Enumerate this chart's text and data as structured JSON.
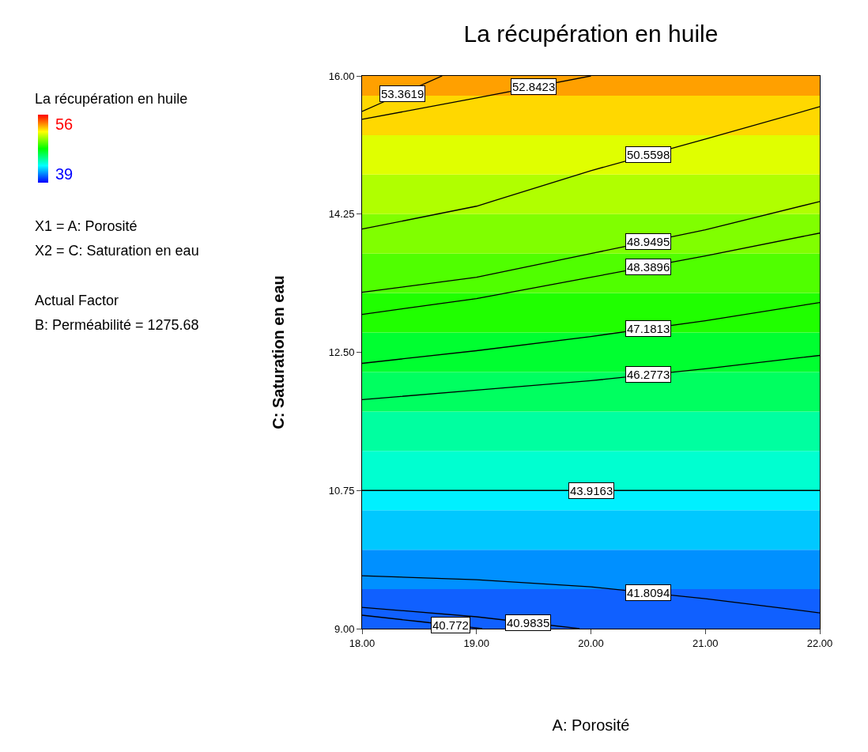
{
  "chart_data": {
    "type": "line",
    "title": "La récupération en huile",
    "xlabel": "A: Porosité",
    "ylabel": "C: Saturation en eau",
    "annotations": [
      "La récupération en huile",
      "56",
      "39",
      "X1 = A: Porosité",
      "X2 = C: Saturation en eau",
      "Actual Factor",
      "B: Perméabilité = 1275.68"
    ],
    "xlim": [
      18,
      22
    ],
    "xticks": [
      {
        "value": 18,
        "label": "18.00"
      },
      {
        "value": 19,
        "label": "19.00"
      },
      {
        "value": 20,
        "label": "20.00"
      },
      {
        "value": 21,
        "label": "21.00"
      },
      {
        "value": 22,
        "label": "22.00"
      }
    ],
    "ylim": [
      9,
      16
    ],
    "yticks": [
      {
        "value": 9,
        "label": "9.00"
      },
      {
        "value": 10.75,
        "label": "10.75"
      },
      {
        "value": 12.5,
        "label": "12.50"
      },
      {
        "value": 14.25,
        "label": "14.25"
      },
      {
        "value": 16,
        "label": "16.00"
      }
    ],
    "grid": false,
    "legend": false,
    "marker": "none",
    "line_style": "solid",
    "bands": [
      {
        "axis": "y",
        "from": 9,
        "to": 9.5,
        "color": "#1060ff"
      },
      {
        "axis": "y",
        "from": 9.5,
        "to": 10,
        "color": "#0090ff"
      },
      {
        "axis": "y",
        "from": 10,
        "to": 10.5,
        "color": "#00c8ff"
      },
      {
        "axis": "y",
        "from": 10.5,
        "to": 10.75,
        "color": "#00f0ff"
      },
      {
        "axis": "y",
        "from": 10.75,
        "to": 11.25,
        "color": "#00ffd0"
      },
      {
        "axis": "y",
        "from": 11.25,
        "to": 11.75,
        "color": "#00ffa0"
      },
      {
        "axis": "y",
        "from": 11.75,
        "to": 12.25,
        "color": "#00ff60"
      },
      {
        "axis": "y",
        "from": 12.25,
        "to": 12.75,
        "color": "#00ff30"
      },
      {
        "axis": "y",
        "from": 12.75,
        "to": 13.25,
        "color": "#20ff00"
      },
      {
        "axis": "y",
        "from": 13.25,
        "to": 13.75,
        "color": "#50ff00"
      },
      {
        "axis": "y",
        "from": 13.75,
        "to": 14.25,
        "color": "#80ff00"
      },
      {
        "axis": "y",
        "from": 14.25,
        "to": 14.75,
        "color": "#b0ff00"
      },
      {
        "axis": "y",
        "from": 14.75,
        "to": 15.25,
        "color": "#e0ff00"
      },
      {
        "axis": "y",
        "from": 15.25,
        "to": 15.75,
        "color": "#ffd800"
      },
      {
        "axis": "y",
        "from": 15.75,
        "to": 16,
        "color": "#ffa000"
      }
    ],
    "series": [
      {
        "name": "53.3619",
        "color": "#000000",
        "x": [
          18,
          18.7
        ],
        "values": [
          15.55,
          16
        ]
      },
      {
        "name": "52.8423",
        "color": "#000000",
        "x": [
          18,
          19,
          20
        ],
        "values": [
          15.45,
          15.72,
          16
        ]
      },
      {
        "name": "50.5598",
        "color": "#000000",
        "x": [
          18,
          19,
          20,
          21,
          22
        ],
        "values": [
          14.06,
          14.35,
          14.8,
          15.2,
          15.61
        ]
      },
      {
        "name": "48.9495",
        "color": "#000000",
        "x": [
          18,
          19,
          20,
          21,
          22
        ],
        "values": [
          13.26,
          13.45,
          13.75,
          14.05,
          14.41
        ]
      },
      {
        "name": "48.3896",
        "color": "#000000",
        "x": [
          18,
          19,
          20,
          21,
          22
        ],
        "values": [
          12.98,
          13.18,
          13.45,
          13.72,
          14.01
        ]
      },
      {
        "name": "47.1813",
        "color": "#000000",
        "x": [
          18,
          19,
          20,
          21,
          22
        ],
        "values": [
          12.36,
          12.52,
          12.7,
          12.9,
          13.13
        ]
      },
      {
        "name": "46.2773",
        "color": "#000000",
        "x": [
          18,
          19,
          20,
          21,
          22
        ],
        "values": [
          11.9,
          12.02,
          12.14,
          12.29,
          12.46
        ]
      },
      {
        "name": "43.9163",
        "color": "#000000",
        "x": [
          18,
          19.5,
          20.5,
          22
        ],
        "values": [
          10.75,
          10.75,
          10.75,
          10.75
        ]
      },
      {
        "name": "41.8094",
        "color": "#000000",
        "x": [
          18,
          19,
          20,
          21,
          22
        ],
        "values": [
          9.67,
          9.62,
          9.53,
          9.38,
          9.2
        ]
      },
      {
        "name": "40.9835",
        "color": "#000000",
        "x": [
          18,
          19,
          19.9
        ],
        "values": [
          9.27,
          9.15,
          9.0
        ]
      },
      {
        "name": "40.772",
        "color": "#000000",
        "x": [
          18,
          18.5,
          19.05
        ],
        "values": [
          9.17,
          9.09,
          9.0
        ]
      }
    ]
  }
}
